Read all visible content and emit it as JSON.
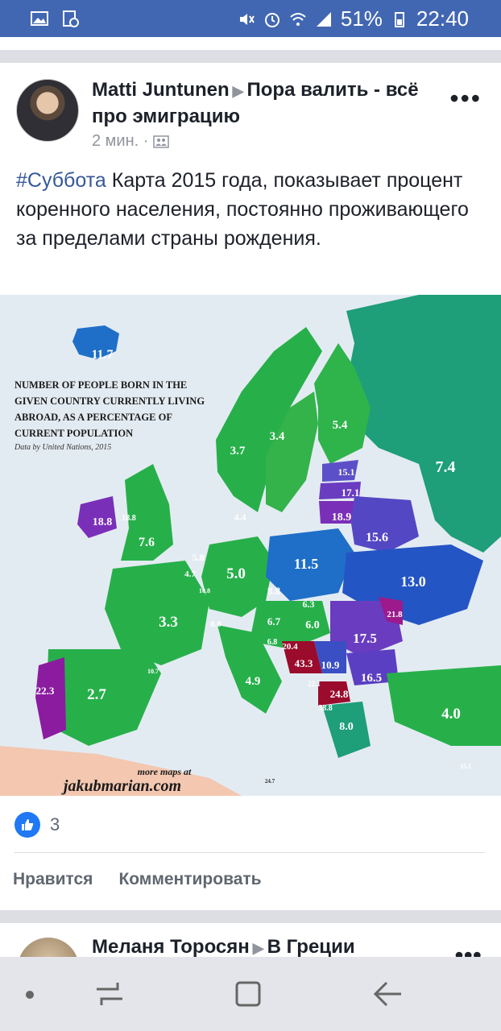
{
  "status": {
    "battery": "51%",
    "time": "22:40"
  },
  "post": {
    "author": "Matti Juntunen",
    "group": "Пора валить - всё про эмиграцию",
    "time": "2 мин. ·",
    "hashtag": "#Суббота",
    "text": " Карта 2015 года, показывает процент коренного населения, постоянно проживающего за пределами страны рождения.",
    "likes_count": "3",
    "like_label": "Нравится",
    "comment_label": "Комментировать"
  },
  "map": {
    "title_lines": [
      "NUMBER OF PEOPLE BORN IN THE",
      "GIVEN COUNTRY CURRENTLY LIVING",
      "ABROAD, AS A PERCENTAGE OF",
      "CURRENT POPULATION"
    ],
    "source": "Data by United Nations, 2015",
    "footer_small": "more maps at",
    "footer_big": "jakubmarian.com",
    "values": {
      "iceland": "11.7",
      "norway": "3.7",
      "sweden": "3.4",
      "finland": "5.4",
      "russia": "7.4",
      "estonia": "15.1",
      "latvia": "17.1",
      "lithuania": "18.9",
      "belarus": "15.6",
      "ireland": "18.8",
      "uk": "7.6",
      "netherlands": "5.8",
      "belgium": "4.7",
      "luxembourg": "10.8",
      "germany": "5.0",
      "poland": "11.5",
      "ukraine": "13.0",
      "czech": "8.8",
      "slovakia": "6.3",
      "austria": "6.7",
      "switzerland": "8.0",
      "hungary": "6.0",
      "moldova": "21.8",
      "romania": "17.5",
      "france": "3.3",
      "italy": "4.9",
      "slovenia": "6.8",
      "croatia": "20.4",
      "bosnia": "43.3",
      "serbia": "10.9",
      "montenegro": "22.1",
      "bulgaria": "16.5",
      "macedonia": "24.8",
      "albania": "38.8",
      "greece": "8.0",
      "turkey": "4.0",
      "portugal": "22.3",
      "spain": "2.7",
      "andorra": "10.7",
      "cyprus": "15.1",
      "malta": "24.7",
      "denmark": "4.4",
      "northern_ireland": "18.8"
    }
  },
  "next_post": {
    "author": "Меланя Торосян",
    "group": "В Греции"
  }
}
